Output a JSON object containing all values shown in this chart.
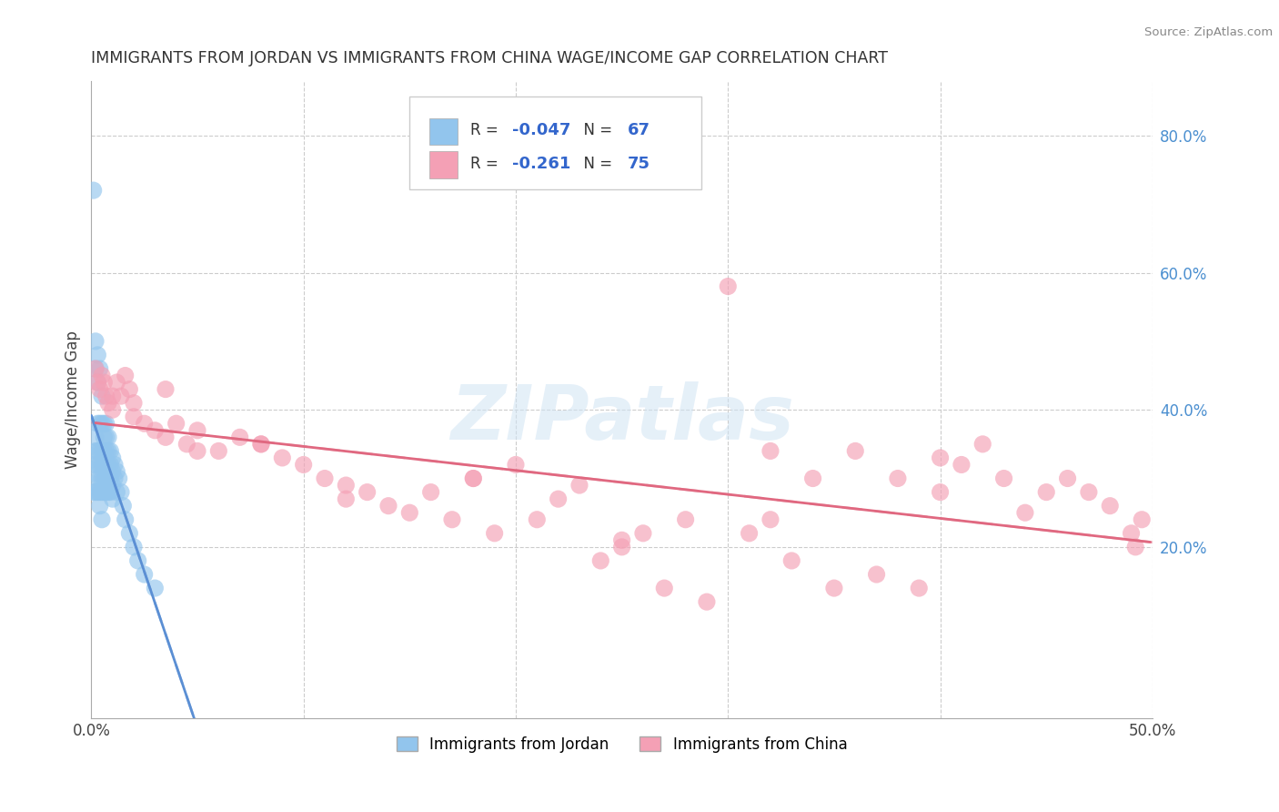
{
  "title": "IMMIGRANTS FROM JORDAN VS IMMIGRANTS FROM CHINA WAGE/INCOME GAP CORRELATION CHART",
  "source": "Source: ZipAtlas.com",
  "ylabel": "Wage/Income Gap",
  "right_yticklabels": [
    "20.0%",
    "40.0%",
    "60.0%",
    "80.0%"
  ],
  "right_yticks": [
    0.2,
    0.4,
    0.6,
    0.8
  ],
  "xmin": 0.0,
  "xmax": 0.5,
  "ymin": -0.05,
  "ymax": 0.88,
  "jordan_color": "#92C5ED",
  "china_color": "#F4A0B5",
  "jordan_R": -0.047,
  "jordan_N": 67,
  "china_R": -0.261,
  "china_N": 75,
  "jordan_line_color": "#5B8FD4",
  "china_line_color": "#E06880",
  "watermark": "ZIPatlas",
  "background_color": "#ffffff",
  "grid_color": "#cccccc",
  "jordan_x": [
    0.001,
    0.001,
    0.001,
    0.002,
    0.002,
    0.002,
    0.002,
    0.002,
    0.003,
    0.003,
    0.003,
    0.003,
    0.003,
    0.003,
    0.003,
    0.004,
    0.004,
    0.004,
    0.004,
    0.004,
    0.004,
    0.004,
    0.005,
    0.005,
    0.005,
    0.005,
    0.005,
    0.005,
    0.005,
    0.006,
    0.006,
    0.006,
    0.006,
    0.006,
    0.006,
    0.007,
    0.007,
    0.007,
    0.007,
    0.007,
    0.007,
    0.008,
    0.008,
    0.008,
    0.008,
    0.008,
    0.009,
    0.009,
    0.009,
    0.009,
    0.01,
    0.01,
    0.01,
    0.01,
    0.011,
    0.011,
    0.012,
    0.012,
    0.013,
    0.014,
    0.015,
    0.016,
    0.018,
    0.02,
    0.022,
    0.025,
    0.03
  ],
  "jordan_y": [
    0.72,
    0.32,
    0.28,
    0.5,
    0.46,
    0.36,
    0.34,
    0.28,
    0.48,
    0.44,
    0.38,
    0.34,
    0.32,
    0.3,
    0.28,
    0.46,
    0.38,
    0.34,
    0.32,
    0.3,
    0.28,
    0.26,
    0.42,
    0.38,
    0.34,
    0.32,
    0.3,
    0.28,
    0.24,
    0.38,
    0.36,
    0.34,
    0.32,
    0.3,
    0.28,
    0.38,
    0.36,
    0.34,
    0.32,
    0.3,
    0.28,
    0.36,
    0.34,
    0.32,
    0.3,
    0.28,
    0.34,
    0.32,
    0.3,
    0.28,
    0.33,
    0.31,
    0.29,
    0.27,
    0.32,
    0.3,
    0.31,
    0.28,
    0.3,
    0.28,
    0.26,
    0.24,
    0.22,
    0.2,
    0.18,
    0.16,
    0.14
  ],
  "china_x": [
    0.002,
    0.003,
    0.004,
    0.005,
    0.006,
    0.007,
    0.008,
    0.01,
    0.012,
    0.014,
    0.016,
    0.018,
    0.02,
    0.025,
    0.03,
    0.035,
    0.04,
    0.045,
    0.05,
    0.06,
    0.07,
    0.08,
    0.09,
    0.1,
    0.11,
    0.12,
    0.13,
    0.14,
    0.15,
    0.16,
    0.17,
    0.18,
    0.19,
    0.2,
    0.21,
    0.22,
    0.23,
    0.24,
    0.25,
    0.26,
    0.27,
    0.28,
    0.29,
    0.3,
    0.31,
    0.32,
    0.33,
    0.34,
    0.35,
    0.36,
    0.37,
    0.38,
    0.39,
    0.4,
    0.41,
    0.42,
    0.43,
    0.44,
    0.45,
    0.46,
    0.47,
    0.48,
    0.49,
    0.492,
    0.495,
    0.01,
    0.02,
    0.035,
    0.05,
    0.08,
    0.12,
    0.18,
    0.25,
    0.32,
    0.4
  ],
  "china_y": [
    0.46,
    0.44,
    0.43,
    0.45,
    0.44,
    0.42,
    0.41,
    0.4,
    0.44,
    0.42,
    0.45,
    0.43,
    0.41,
    0.38,
    0.37,
    0.36,
    0.38,
    0.35,
    0.37,
    0.34,
    0.36,
    0.35,
    0.33,
    0.32,
    0.3,
    0.29,
    0.28,
    0.26,
    0.25,
    0.28,
    0.24,
    0.3,
    0.22,
    0.32,
    0.24,
    0.27,
    0.29,
    0.18,
    0.2,
    0.22,
    0.14,
    0.24,
    0.12,
    0.58,
    0.22,
    0.24,
    0.18,
    0.3,
    0.14,
    0.34,
    0.16,
    0.3,
    0.14,
    0.28,
    0.32,
    0.35,
    0.3,
    0.25,
    0.28,
    0.3,
    0.28,
    0.26,
    0.22,
    0.2,
    0.24,
    0.42,
    0.39,
    0.43,
    0.34,
    0.35,
    0.27,
    0.3,
    0.21,
    0.34,
    0.33
  ]
}
